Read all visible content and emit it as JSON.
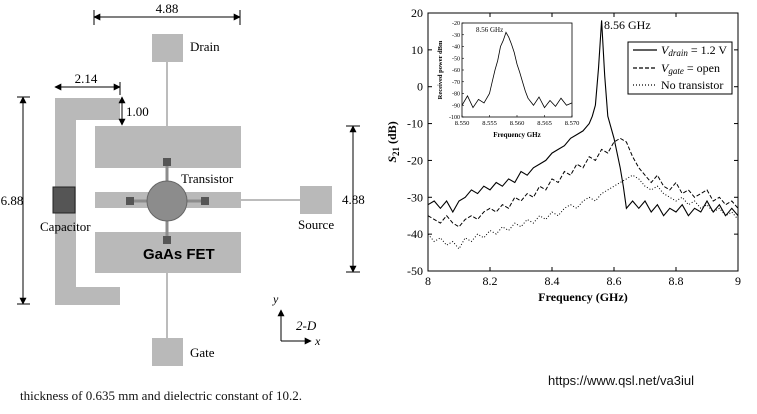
{
  "layout_dims": {
    "top_width": "4.88",
    "arm_width": "2.14",
    "gap": "1.00",
    "height_left": "6.88",
    "height_right": "4.88"
  },
  "layout_labels": {
    "drain": "Drain",
    "gate": "Gate",
    "source": "Source",
    "transistor": "Transistor",
    "capacitor": "Capacitor",
    "gaas": "GaAs FET",
    "axis_y": "y",
    "axis_x": "x",
    "axis_2d": "2-D"
  },
  "colors": {
    "pad": "#b9b9b9",
    "outline": "#7a7a7a",
    "capacitor_fill": "#555555",
    "transistor": "#8c8c8c",
    "line": "#000000"
  },
  "caption": "thickness of  0.635 mm and dielectric constant of 10.2.",
  "url": "https://www.qsl.net/va3iul",
  "chart_data": [
    {
      "type": "line",
      "title": "",
      "xlabel": "Frequency (GHz)",
      "ylabel": "S21 (dB)",
      "ylabel_main": "S",
      "ylabel_sub": "21",
      "ylabel_unit": " (dB)",
      "xlim": [
        8,
        9
      ],
      "ylim": [
        -50,
        20
      ],
      "xticks": [
        "8",
        "8.2",
        "8.4",
        "8.6",
        "8.8",
        "9"
      ],
      "yticks": [
        "20",
        "10",
        "0",
        "-10",
        "-20",
        "-30",
        "-40",
        "-50"
      ],
      "annotation": "8.56 GHz",
      "legend_position": "top-right",
      "series": [
        {
          "name": "Vdrain = 1.2 V",
          "legend_main": "V",
          "legend_sub": "drain",
          "legend_rest": " = 1.2 V",
          "style": "solid",
          "x": [
            8.0,
            8.02,
            8.04,
            8.06,
            8.08,
            8.1,
            8.12,
            8.14,
            8.16,
            8.18,
            8.2,
            8.22,
            8.24,
            8.26,
            8.28,
            8.3,
            8.32,
            8.34,
            8.36,
            8.38,
            8.4,
            8.42,
            8.44,
            8.46,
            8.48,
            8.5,
            8.52,
            8.53,
            8.54,
            8.55,
            8.56,
            8.57,
            8.58,
            8.6,
            8.62,
            8.63,
            8.64,
            8.66,
            8.68,
            8.7,
            8.72,
            8.74,
            8.76,
            8.78,
            8.8,
            8.82,
            8.84,
            8.86,
            8.88,
            8.9,
            8.92,
            8.94,
            8.96,
            8.98,
            9.0
          ],
          "y": [
            -32,
            -31,
            -33,
            -31,
            -34,
            -31,
            -30,
            -28,
            -29,
            -27,
            -28,
            -26,
            -27,
            -25,
            -26,
            -23,
            -24,
            -22,
            -21,
            -20,
            -18,
            -17,
            -16,
            -14,
            -13,
            -12,
            -10,
            -8,
            -5,
            5,
            18,
            3,
            -8,
            -14,
            -22,
            -27,
            -33,
            -31,
            -33,
            -31,
            -34,
            -32,
            -35,
            -33,
            -34,
            -32,
            -35,
            -33,
            -34,
            -31,
            -34,
            -32,
            -35,
            -33,
            -35
          ]
        },
        {
          "name": "Vgate = open",
          "legend_main": "V",
          "legend_sub": "gate",
          "legend_rest": " = open",
          "style": "dashed",
          "x": [
            8.0,
            8.02,
            8.04,
            8.06,
            8.08,
            8.1,
            8.12,
            8.14,
            8.16,
            8.18,
            8.2,
            8.22,
            8.24,
            8.26,
            8.28,
            8.3,
            8.32,
            8.34,
            8.36,
            8.38,
            8.4,
            8.42,
            8.44,
            8.46,
            8.48,
            8.5,
            8.52,
            8.54,
            8.56,
            8.58,
            8.6,
            8.62,
            8.64,
            8.66,
            8.68,
            8.7,
            8.72,
            8.74,
            8.76,
            8.78,
            8.8,
            8.82,
            8.84,
            8.86,
            8.88,
            8.9,
            8.92,
            8.94,
            8.96,
            8.98,
            9.0
          ],
          "y": [
            -35,
            -36,
            -37,
            -35,
            -37,
            -38,
            -36,
            -35,
            -36,
            -34,
            -33,
            -34,
            -32,
            -33,
            -30,
            -31,
            -29,
            -30,
            -27,
            -28,
            -25,
            -26,
            -23,
            -24,
            -21,
            -22,
            -19,
            -20,
            -17,
            -18,
            -15,
            -14,
            -15,
            -19,
            -22,
            -24,
            -26,
            -24,
            -27,
            -28,
            -26,
            -29,
            -28,
            -30,
            -29,
            -28,
            -31,
            -30,
            -32,
            -31,
            -33
          ]
        },
        {
          "name": "No transistor",
          "style": "dotted",
          "x": [
            8.0,
            8.02,
            8.04,
            8.06,
            8.08,
            8.1,
            8.12,
            8.14,
            8.16,
            8.18,
            8.2,
            8.22,
            8.24,
            8.26,
            8.28,
            8.3,
            8.32,
            8.34,
            8.36,
            8.38,
            8.4,
            8.42,
            8.44,
            8.46,
            8.48,
            8.5,
            8.52,
            8.54,
            8.56,
            8.58,
            8.6,
            8.62,
            8.64,
            8.66,
            8.68,
            8.7,
            8.72,
            8.74,
            8.76,
            8.78,
            8.8,
            8.82,
            8.84,
            8.86,
            8.88,
            8.9,
            8.92,
            8.94,
            8.96,
            8.98,
            9.0
          ],
          "y": [
            -40,
            -42,
            -41,
            -43,
            -42,
            -44,
            -41,
            -42,
            -40,
            -41,
            -39,
            -40,
            -38,
            -39,
            -37,
            -38,
            -36,
            -37,
            -35,
            -36,
            -34,
            -35,
            -33,
            -32,
            -33,
            -31,
            -30,
            -31,
            -29,
            -28,
            -27,
            -26,
            -25,
            -24,
            -25,
            -27,
            -28,
            -27,
            -29,
            -30,
            -31,
            -30,
            -32,
            -31,
            -33,
            -32,
            -34,
            -33,
            -35,
            -34,
            -36
          ]
        }
      ]
    },
    {
      "type": "line",
      "inset": true,
      "title": "8.56 GHz",
      "xlabel": "Frequency GHz",
      "ylabel": "Received power dBm",
      "xlim": [
        8.55,
        8.57
      ],
      "ylim": [
        -100,
        -20
      ],
      "xticks": [
        "8.550",
        "8.555",
        "8.560",
        "8.565",
        "8.570"
      ],
      "yticks": [
        "-20",
        "-30",
        "-40",
        "-50",
        "-60",
        "-70",
        "-80",
        "-90",
        "-100"
      ],
      "series": [
        {
          "x": [
            8.55,
            8.551,
            8.552,
            8.553,
            8.554,
            8.555,
            8.5555,
            8.556,
            8.5565,
            8.557,
            8.5575,
            8.558,
            8.5585,
            8.559,
            8.5595,
            8.56,
            8.5605,
            8.561,
            8.5615,
            8.562,
            8.563,
            8.564,
            8.565,
            8.566,
            8.567,
            8.568,
            8.569,
            8.57
          ],
          "y": [
            -90,
            -82,
            -92,
            -85,
            -88,
            -80,
            -70,
            -60,
            -52,
            -40,
            -35,
            -28,
            -32,
            -38,
            -45,
            -55,
            -62,
            -70,
            -78,
            -84,
            -90,
            -83,
            -92,
            -86,
            -91,
            -84,
            -90,
            -88
          ]
        }
      ]
    }
  ]
}
